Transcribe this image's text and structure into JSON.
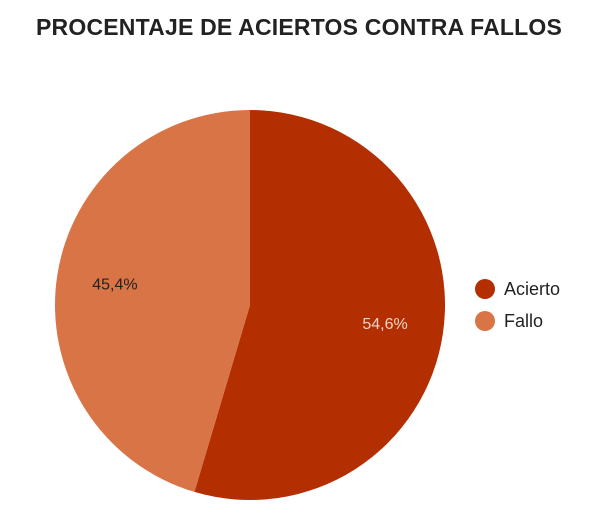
{
  "chart_data": {
    "type": "pie",
    "title": "PROCENTAJE DE ACIERTOS CONTRA FALLOS",
    "categories": [
      "Acierto",
      "Fallo"
    ],
    "values": [
      54.6,
      45.4
    ],
    "labels": [
      "54,6%",
      "45,4%"
    ],
    "colors": [
      "#B32E00",
      "#D97446"
    ],
    "label_colors": [
      "#F2D5C8",
      "#222222"
    ],
    "legend_position": "right"
  }
}
